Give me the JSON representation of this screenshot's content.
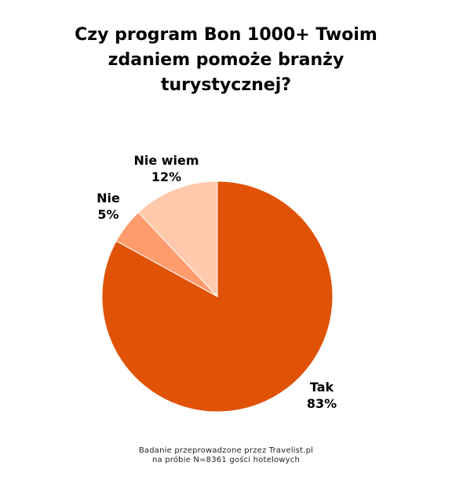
{
  "title_lines": [
    "Czy program Bon 1000+ Twoim",
    "zdaniem pomoże branży",
    "turystycznej?"
  ],
  "footer_lines": [
    "Badanie przeprowadzone przez Travelist.pl",
    "na próbie N=8361 gości hotelowych"
  ],
  "chart_data": {
    "type": "pie",
    "title": "Czy program Bon 1000+ Twoim zdaniem pomoże branży turystycznej?",
    "slices": [
      {
        "label": "Tak",
        "value": 83,
        "value_label": "83%",
        "color": "#E05206"
      },
      {
        "label": "Nie",
        "value": 5,
        "value_label": "5%",
        "color": "#FF9C6E"
      },
      {
        "label": "Nie wiem",
        "value": 12,
        "value_label": "12%",
        "color": "#FFC9AB"
      }
    ],
    "start": "12 o'clock",
    "direction": "clockwise"
  }
}
